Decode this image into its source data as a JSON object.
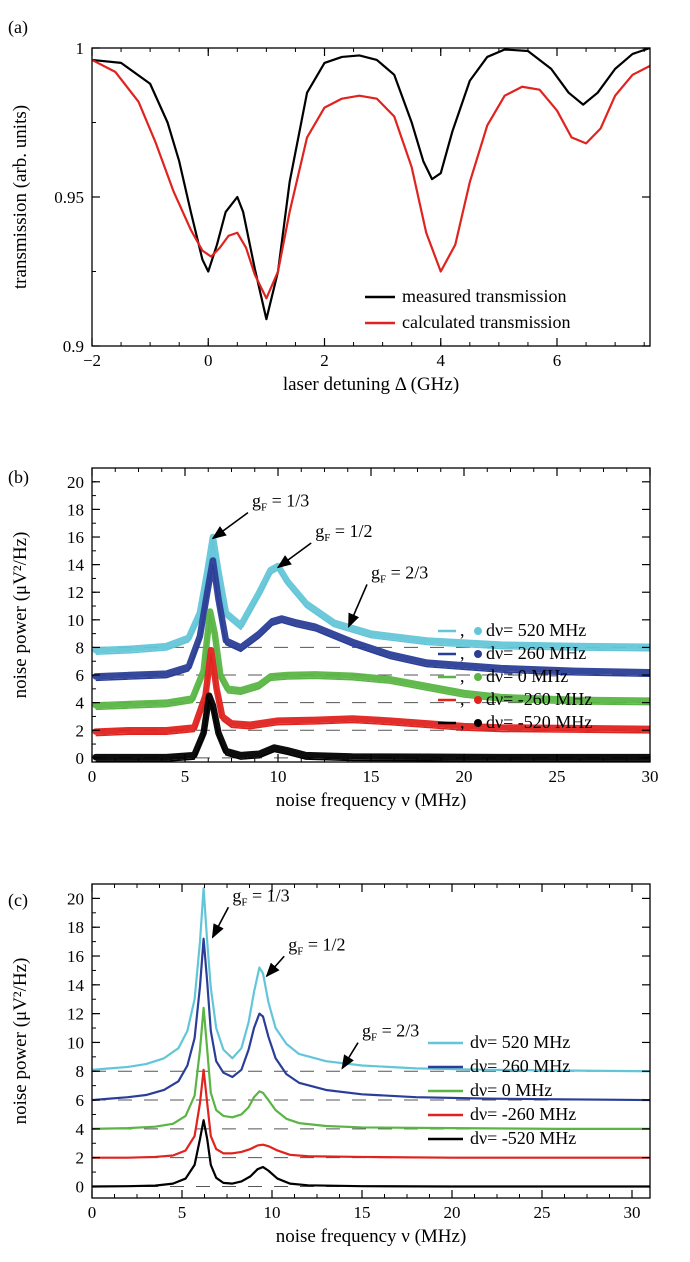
{
  "chart_data": [
    {
      "panel_label": "(a)",
      "type": "line",
      "xlabel": "laser detuning Δ (GHz)",
      "ylabel": "transmission (arb. units)",
      "xlim": [
        -2,
        7.6
      ],
      "ylim": [
        0.9,
        1.0
      ],
      "xticks": [
        -2,
        0,
        2,
        4,
        6
      ],
      "xtick_labels": [
        "−2",
        "0",
        "2",
        "4",
        "6"
      ],
      "yticks": [
        0.9,
        0.95,
        1.0
      ],
      "ytick_labels": [
        "0.9",
        "0.95",
        "1"
      ],
      "grid": false,
      "legend_position": "bottom-right",
      "series": [
        {
          "name": "measured transmission",
          "color": "#000000",
          "x": [
            -2,
            -1.5,
            -1,
            -0.7,
            -0.5,
            -0.3,
            -0.1,
            0,
            0.15,
            0.3,
            0.5,
            0.6,
            0.8,
            1.0,
            1.2,
            1.4,
            1.7,
            2.0,
            2.3,
            2.6,
            2.9,
            3.2,
            3.5,
            3.7,
            3.85,
            4.0,
            4.2,
            4.5,
            4.8,
            5.1,
            5.5,
            5.9,
            6.2,
            6.45,
            6.7,
            7.0,
            7.3,
            7.6
          ],
          "y": [
            0.996,
            0.995,
            0.988,
            0.975,
            0.962,
            0.945,
            0.929,
            0.925,
            0.934,
            0.945,
            0.95,
            0.945,
            0.926,
            0.909,
            0.925,
            0.955,
            0.985,
            0.995,
            0.997,
            0.9975,
            0.996,
            0.991,
            0.975,
            0.962,
            0.956,
            0.958,
            0.972,
            0.989,
            0.997,
            0.9995,
            0.999,
            0.993,
            0.985,
            0.981,
            0.985,
            0.993,
            0.998,
            1.0
          ]
        },
        {
          "name": "calculated transmission",
          "color": "#e0231f",
          "x": [
            -2,
            -1.6,
            -1.2,
            -0.9,
            -0.6,
            -0.3,
            -0.1,
            0.05,
            0.2,
            0.35,
            0.5,
            0.65,
            0.8,
            1.0,
            1.2,
            1.4,
            1.7,
            2.0,
            2.3,
            2.6,
            2.9,
            3.2,
            3.5,
            3.75,
            4.0,
            4.25,
            4.5,
            4.8,
            5.1,
            5.4,
            5.7,
            6.0,
            6.25,
            6.5,
            6.75,
            7.0,
            7.3,
            7.6
          ],
          "y": [
            0.996,
            0.992,
            0.982,
            0.968,
            0.952,
            0.939,
            0.932,
            0.93,
            0.933,
            0.937,
            0.938,
            0.933,
            0.924,
            0.916,
            0.925,
            0.945,
            0.97,
            0.98,
            0.983,
            0.984,
            0.983,
            0.977,
            0.96,
            0.938,
            0.925,
            0.934,
            0.955,
            0.974,
            0.984,
            0.987,
            0.986,
            0.979,
            0.97,
            0.968,
            0.973,
            0.984,
            0.991,
            0.994
          ]
        }
      ]
    },
    {
      "panel_label": "(b)",
      "type": "line",
      "xlabel": "noise frequency ν (MHz)",
      "ylabel": "noise power (μV²/Hz)",
      "xlim": [
        0,
        30
      ],
      "ylim": [
        -0.3,
        21
      ],
      "xticks": [
        0,
        5,
        10,
        15,
        20,
        25,
        30
      ],
      "xtick_labels": [
        "0",
        "5",
        "10",
        "15",
        "20",
        "25",
        "30"
      ],
      "yticks": [
        0,
        2,
        4,
        6,
        8,
        10,
        12,
        14,
        16,
        18,
        20
      ],
      "ytick_labels": [
        "0",
        "2",
        "4",
        "6",
        "8",
        "10",
        "12",
        "14",
        "16",
        "18",
        "20"
      ],
      "dashed_baselines": [
        0,
        2,
        4,
        6,
        8
      ],
      "grid": false,
      "legend_position": "right",
      "legend_separator": ",",
      "annotations": [
        {
          "text_main": "g",
          "text_sub": "F",
          "text_rest": " = 1/3",
          "target": [
            6.5,
            15.9
          ],
          "text_at": [
            8.6,
            18.2
          ]
        },
        {
          "text_main": "g",
          "text_sub": "F",
          "text_rest": " = 1/2",
          "target": [
            10.0,
            13.8
          ],
          "text_at": [
            12.0,
            16.0
          ]
        },
        {
          "text_main": "g",
          "text_sub": "F",
          "text_rest": " = 2/3",
          "target": [
            13.8,
            9.5
          ],
          "text_at": [
            15.0,
            13.0
          ]
        }
      ],
      "series": [
        {
          "name": "dν= 520 MHz",
          "color": "#63c6d8",
          "offset": 8,
          "x": [
            0.2,
            2,
            4,
            5.2,
            5.8,
            6.2,
            6.5,
            6.8,
            7.2,
            8,
            9,
            9.6,
            10,
            10.5,
            11.5,
            13,
            15,
            18,
            22,
            26,
            30
          ],
          "y": [
            7.8,
            7.9,
            8.1,
            8.7,
            10.5,
            13.5,
            16.0,
            13.5,
            10.5,
            9.6,
            12.0,
            13.6,
            13.9,
            12.8,
            11.2,
            9.8,
            9.0,
            8.5,
            8.2,
            8.1,
            8.05
          ]
        },
        {
          "name": "dν= 260 MHz",
          "color": "#2b3e97",
          "offset": 6,
          "x": [
            0.2,
            2,
            4,
            5.2,
            5.8,
            6.2,
            6.5,
            6.8,
            7.2,
            8,
            9,
            9.7,
            10.2,
            11,
            12,
            14,
            16,
            18,
            22,
            26,
            30
          ],
          "y": [
            5.9,
            6.0,
            6.1,
            6.6,
            8.8,
            12.0,
            14.3,
            11.5,
            8.5,
            8.0,
            9.0,
            9.9,
            10.1,
            9.8,
            9.5,
            8.4,
            7.5,
            6.9,
            6.5,
            6.3,
            6.2
          ]
        },
        {
          "name": "dν= 0 MHz",
          "color": "#5ab545",
          "offset": 4,
          "x": [
            0.2,
            2,
            4,
            5.4,
            6,
            6.35,
            6.6,
            6.9,
            7.3,
            8,
            9,
            9.6,
            10.5,
            12,
            14,
            16,
            18,
            20,
            22,
            26,
            30
          ],
          "y": [
            3.8,
            3.9,
            4.0,
            4.3,
            6.3,
            10.6,
            9.0,
            6.0,
            5.0,
            4.9,
            5.3,
            5.9,
            6.0,
            6.05,
            5.95,
            5.7,
            5.2,
            4.7,
            4.4,
            4.2,
            4.15
          ]
        },
        {
          "name": "dν= -260 MHz",
          "color": "#e0231f",
          "offset": 2,
          "x": [
            0.2,
            2,
            4,
            5.5,
            6.1,
            6.4,
            6.7,
            7.0,
            7.5,
            8.5,
            10,
            12,
            14,
            16,
            18,
            20,
            22,
            26,
            30
          ],
          "y": [
            1.9,
            2.0,
            2.0,
            2.2,
            4.5,
            7.8,
            5.0,
            3.0,
            2.5,
            2.4,
            2.7,
            2.75,
            2.85,
            2.7,
            2.5,
            2.3,
            2.2,
            2.15,
            2.1
          ]
        },
        {
          "name": "dν= -520 MHz",
          "color": "#000000",
          "offset": 0,
          "x": [
            0.2,
            2,
            4,
            5.5,
            6.0,
            6.3,
            6.5,
            6.8,
            7.2,
            8,
            9,
            9.8,
            10.5,
            11.5,
            14,
            18,
            22,
            26,
            30
          ],
          "y": [
            0.05,
            0.05,
            0.05,
            0.2,
            1.8,
            4.5,
            3.8,
            1.8,
            0.5,
            0.2,
            0.3,
            0.75,
            0.55,
            0.2,
            0.1,
            0.08,
            0.05,
            0.05,
            0.05
          ]
        }
      ]
    },
    {
      "panel_label": "(c)",
      "type": "line",
      "xlabel": "noise frequency ν (MHz)",
      "ylabel": "noise power (μV²/Hz)",
      "xlim": [
        0,
        31
      ],
      "ylim": [
        -0.8,
        21
      ],
      "xticks": [
        0,
        5,
        10,
        15,
        20,
        25,
        30
      ],
      "xtick_labels": [
        "0",
        "5",
        "10",
        "15",
        "20",
        "25",
        "30"
      ],
      "yticks": [
        0,
        2,
        4,
        6,
        8,
        10,
        12,
        14,
        16,
        18,
        20
      ],
      "ytick_labels": [
        "0",
        "2",
        "4",
        "6",
        "8",
        "10",
        "12",
        "14",
        "16",
        "18",
        "20"
      ],
      "dashed_baselines": [
        0,
        2,
        4,
        6,
        8
      ],
      "grid": false,
      "legend_position": "right",
      "annotations": [
        {
          "text_main": "g",
          "text_sub": "F",
          "text_rest": " = 1/3",
          "target": [
            6.7,
            17.3
          ],
          "text_at": [
            7.8,
            19.8
          ]
        },
        {
          "text_main": "g",
          "text_sub": "F",
          "text_rest": " = 1/2",
          "target": [
            9.7,
            14.6
          ],
          "text_at": [
            10.9,
            16.4
          ]
        },
        {
          "text_main": "g",
          "text_sub": "F",
          "text_rest": " = 2/3",
          "target": [
            13.9,
            8.2
          ],
          "text_at": [
            15.0,
            10.4
          ]
        }
      ],
      "series": [
        {
          "name": "dν= 520 MHz",
          "color": "#63c6d8",
          "x": [
            0,
            1,
            2,
            3,
            4,
            4.8,
            5.3,
            5.7,
            6.0,
            6.2,
            6.4,
            6.6,
            6.9,
            7.3,
            7.8,
            8.3,
            8.7,
            9.0,
            9.3,
            9.5,
            9.8,
            10.2,
            10.8,
            11.5,
            13,
            15,
            18,
            22,
            26,
            31
          ],
          "y": [
            8.1,
            8.2,
            8.3,
            8.5,
            8.9,
            9.6,
            10.8,
            13.0,
            17.0,
            20.7,
            17.0,
            13.8,
            11.0,
            9.5,
            8.9,
            9.6,
            11.4,
            13.5,
            15.2,
            14.8,
            12.8,
            11.0,
            9.9,
            9.2,
            8.7,
            8.4,
            8.2,
            8.1,
            8.05,
            8.0
          ]
        },
        {
          "name": "dν= 260 MHz",
          "color": "#2b3e97",
          "x": [
            0,
            1,
            2,
            3,
            4,
            4.8,
            5.3,
            5.7,
            6.0,
            6.2,
            6.4,
            6.6,
            6.9,
            7.3,
            7.8,
            8.3,
            8.7,
            9.0,
            9.3,
            9.5,
            9.8,
            10.2,
            10.8,
            11.5,
            13,
            15,
            18,
            22,
            26,
            31
          ],
          "y": [
            6.0,
            6.1,
            6.2,
            6.35,
            6.7,
            7.3,
            8.4,
            10.3,
            13.9,
            17.2,
            14.2,
            10.8,
            8.7,
            7.9,
            7.6,
            8.1,
            9.5,
            11.0,
            12.0,
            11.8,
            10.4,
            8.9,
            7.8,
            7.2,
            6.7,
            6.4,
            6.2,
            6.1,
            6.05,
            6.0
          ]
        },
        {
          "name": "dν= 0 MHz",
          "color": "#5ab545",
          "x": [
            0,
            2,
            3.5,
            4.5,
            5.2,
            5.7,
            6.0,
            6.2,
            6.4,
            6.6,
            6.9,
            7.3,
            7.8,
            8.3,
            8.7,
            9.0,
            9.3,
            9.5,
            9.8,
            10.2,
            10.8,
            11.5,
            13,
            15,
            20,
            26,
            31
          ],
          "y": [
            4.0,
            4.05,
            4.15,
            4.35,
            4.9,
            6.3,
            9.5,
            12.4,
            9.5,
            6.5,
            5.3,
            4.9,
            4.8,
            5.0,
            5.5,
            6.2,
            6.6,
            6.5,
            6.0,
            5.3,
            4.7,
            4.4,
            4.2,
            4.1,
            4.05,
            4.0,
            4.0
          ]
        },
        {
          "name": "dν= -260 MHz",
          "color": "#e0231f",
          "x": [
            0,
            2,
            3.5,
            4.5,
            5.2,
            5.7,
            6.0,
            6.2,
            6.4,
            6.6,
            6.9,
            7.3,
            7.8,
            8.3,
            8.8,
            9.2,
            9.5,
            9.8,
            10.3,
            11,
            12,
            15,
            20,
            26,
            31
          ],
          "y": [
            2.0,
            2.0,
            2.05,
            2.15,
            2.5,
            3.5,
            5.8,
            8.1,
            5.8,
            3.5,
            2.6,
            2.3,
            2.3,
            2.4,
            2.6,
            2.85,
            2.9,
            2.8,
            2.5,
            2.2,
            2.1,
            2.05,
            2.0,
            2.0,
            2.0
          ]
        },
        {
          "name": "dν= -520 MHz",
          "color": "#000000",
          "x": [
            0,
            2,
            3.5,
            4.5,
            5.2,
            5.7,
            6.0,
            6.2,
            6.4,
            6.6,
            6.9,
            7.3,
            7.8,
            8.3,
            8.8,
            9.2,
            9.5,
            9.8,
            10.3,
            11,
            12,
            15,
            20,
            26,
            31
          ],
          "y": [
            0.0,
            0.02,
            0.06,
            0.2,
            0.55,
            1.5,
            3.3,
            4.6,
            3.3,
            1.5,
            0.6,
            0.25,
            0.2,
            0.35,
            0.7,
            1.2,
            1.35,
            1.1,
            0.55,
            0.2,
            0.08,
            0.02,
            0.0,
            0.0,
            0.0
          ]
        }
      ]
    }
  ]
}
